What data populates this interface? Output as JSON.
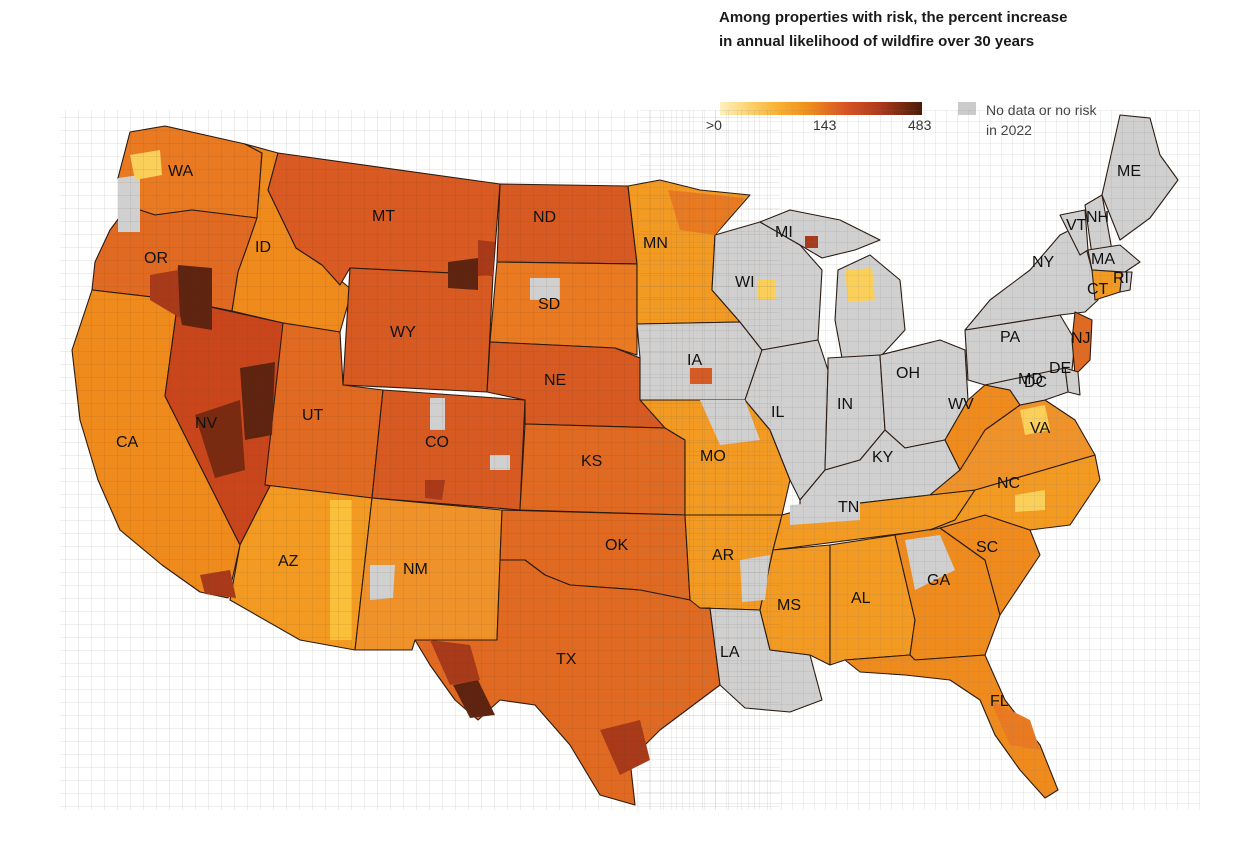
{
  "legend": {
    "title": "Among properties with risk, the percent increase in annual likelihood of wildfire over 30 years",
    "scale_min_label": ">0",
    "scale_mid_label": "143",
    "scale_max_label": "483",
    "nodata_label": "No data or no risk in 2022"
  },
  "colors": {
    "nodata": "#cbcbcb",
    "light": "#fbd05a",
    "medium": "#f29a22",
    "orange": "#e97a22",
    "red": "#d65a22",
    "dark": "#a83a1a",
    "darkest": "#5e2410"
  },
  "states": [
    "WA",
    "OR",
    "CA",
    "ID",
    "NV",
    "MT",
    "WY",
    "UT",
    "AZ",
    "CO",
    "NM",
    "ND",
    "SD",
    "NE",
    "KS",
    "OK",
    "TX",
    "MN",
    "IA",
    "MO",
    "AR",
    "LA",
    "WI",
    "IL",
    "MI",
    "IN",
    "OH",
    "KY",
    "TN",
    "MS",
    "AL",
    "GA",
    "FL",
    "SC",
    "NC",
    "VA",
    "WV",
    "PA",
    "NY",
    "VT",
    "NH",
    "ME",
    "MA",
    "CT",
    "RI",
    "NJ",
    "DE",
    "MD",
    "DC"
  ]
}
